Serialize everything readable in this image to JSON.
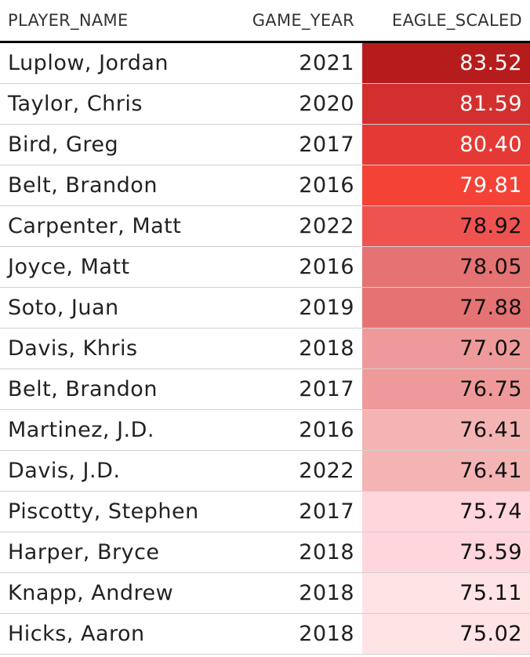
{
  "table": {
    "columns": [
      "PLAYER_NAME",
      "GAME_YEAR",
      "EAGLE_SCALED"
    ],
    "rows": [
      [
        "Luplow, Jordan",
        "2021",
        "83.52"
      ],
      [
        "Taylor, Chris",
        "2020",
        "81.59"
      ],
      [
        "Bird, Greg",
        "2017",
        "80.40"
      ],
      [
        "Belt, Brandon",
        "2016",
        "79.81"
      ],
      [
        "Carpenter, Matt",
        "2022",
        "78.92"
      ],
      [
        "Joyce, Matt",
        "2016",
        "78.05"
      ],
      [
        "Soto, Juan",
        "2019",
        "77.88"
      ],
      [
        "Davis, Khris",
        "2018",
        "77.02"
      ],
      [
        "Belt, Brandon",
        "2017",
        "76.75"
      ],
      [
        "Martinez, J.D.",
        "2016",
        "76.41"
      ],
      [
        "Davis, J.D.",
        "2022",
        "76.41"
      ],
      [
        "Piscotty, Stephen",
        "2017",
        "75.74"
      ],
      [
        "Harper, Bryce",
        "2018",
        "75.59"
      ],
      [
        "Knapp, Andrew",
        "2018",
        "75.11"
      ],
      [
        "Hicks, Aaron",
        "2018",
        "75.02"
      ]
    ],
    "cell_colors": [
      "#b71c1c",
      "#d32f2f",
      "#e53935",
      "#f44336",
      "#ef5350",
      "#e57373",
      "#e57373",
      "#ef9a9a",
      "#ef9a9a",
      "#f5b4b4",
      "#f5b4b4",
      "#ffd6db",
      "#ffd6db",
      "#ffe4e6",
      "#ffe4e6"
    ],
    "text_colors": [
      "#ffffff",
      "#ffffff",
      "#ffffff",
      "#ffffff",
      "#111111",
      "#111111",
      "#111111",
      "#111111",
      "#111111",
      "#111111",
      "#111111",
      "#111111",
      "#111111",
      "#111111",
      "#111111"
    ]
  }
}
